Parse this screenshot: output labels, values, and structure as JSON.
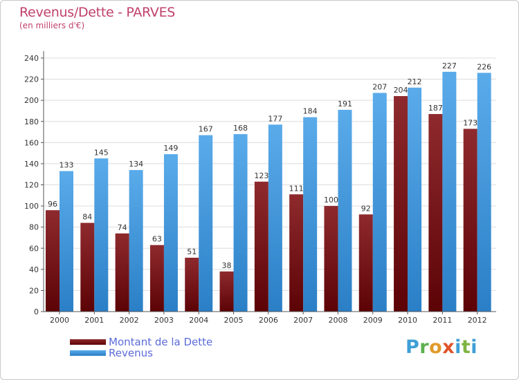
{
  "header": {
    "title": "Revenus/Dette - PARVES",
    "subtitle": "(en milliers d'€)"
  },
  "chart_data": {
    "type": "bar",
    "categories": [
      "2000",
      "2001",
      "2002",
      "2003",
      "2004",
      "2005",
      "2006",
      "2007",
      "2008",
      "2009",
      "2010",
      "2011",
      "2012"
    ],
    "series": [
      {
        "name": "Montant de la Dette",
        "color": "#7a1418",
        "values": [
          96,
          84,
          74,
          63,
          51,
          38,
          123,
          111,
          100,
          92,
          204,
          187,
          173
        ]
      },
      {
        "name": "Revenus",
        "color": "#3d9ae2",
        "values": [
          133,
          145,
          134,
          149,
          167,
          168,
          177,
          184,
          191,
          207,
          212,
          227,
          226
        ]
      }
    ],
    "yticks": [
      0,
      20,
      40,
      60,
      80,
      100,
      120,
      140,
      160,
      180,
      200,
      220,
      240
    ],
    "ylim": [
      0,
      240
    ],
    "grid": true,
    "legend_position": "bottom-left"
  },
  "legend": {
    "items": [
      {
        "label": "Montant de la Dette",
        "color": "#7a1418"
      },
      {
        "label": "Revenus",
        "color": "#3d9ae2"
      }
    ]
  },
  "logo": {
    "p": "P",
    "r": "r",
    "o": "o",
    "x": "x",
    "i": "i",
    "t": "t",
    "i2": "i"
  }
}
